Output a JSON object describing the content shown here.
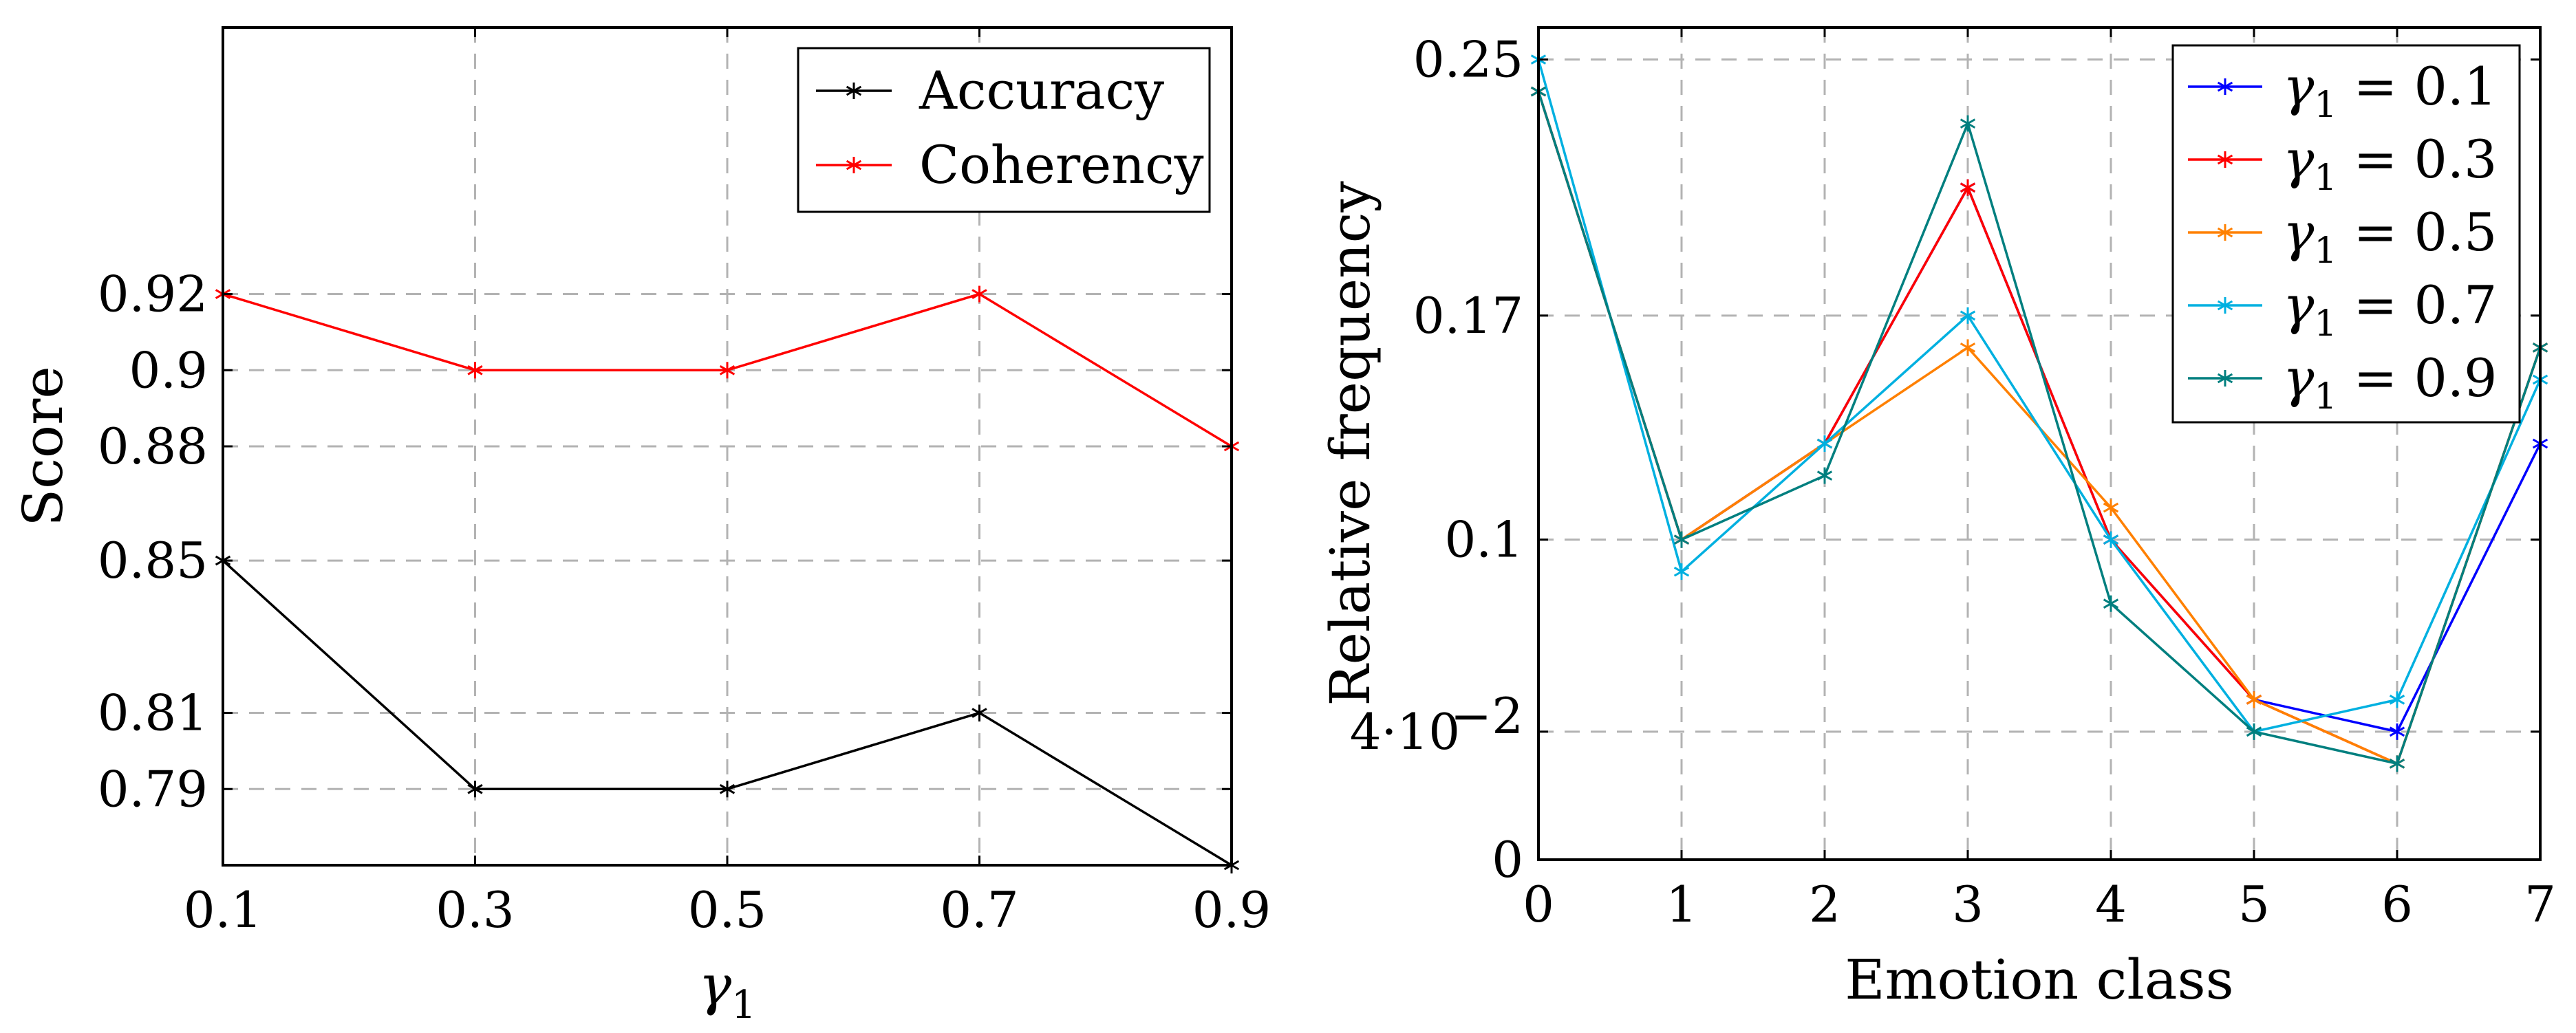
{
  "chart_data": [
    {
      "type": "line",
      "xlabel": "γ1",
      "ylabel": "Score",
      "x": [
        0.1,
        0.3,
        0.5,
        0.7,
        0.9
      ],
      "x_tick_labels": [
        "0.1",
        "0.3",
        "0.5",
        "0.7",
        "0.9"
      ],
      "xlim": [
        0.1,
        0.9
      ],
      "y_ticks": [
        0.79,
        0.81,
        0.85,
        0.88,
        0.9,
        0.92
      ],
      "y_tick_labels": [
        "0.79",
        "0.81",
        "0.85",
        "0.88",
        "0.9",
        "0.92"
      ],
      "ylim": [
        0.77,
        0.99
      ],
      "grid": true,
      "legend_position": "top-right",
      "series": [
        {
          "name": "Accuracy",
          "color": "#000000",
          "marker": "star",
          "values": [
            0.85,
            0.79,
            0.79,
            0.81,
            0.77
          ]
        },
        {
          "name": "Coherency",
          "color": "#ff0000",
          "marker": "star",
          "values": [
            0.92,
            0.9,
            0.9,
            0.92,
            0.88
          ]
        }
      ]
    },
    {
      "type": "line",
      "xlabel": "Emotion class",
      "ylabel": "Relative frequency",
      "x": [
        0,
        1,
        2,
        3,
        4,
        5,
        6,
        7
      ],
      "x_tick_labels": [
        "0",
        "1",
        "2",
        "3",
        "4",
        "5",
        "6",
        "7"
      ],
      "xlim": [
        0,
        7
      ],
      "y_ticks": [
        0,
        0.04,
        0.1,
        0.17,
        0.25
      ],
      "y_tick_labels": [
        "0",
        "4·10",
        "0.1",
        "0.17",
        "0.25"
      ],
      "y_tick_exponent": "−2",
      "ylim": [
        0,
        0.26
      ],
      "grid": true,
      "legend_position": "top-right",
      "legend_prefix": "γ1 = ",
      "series": [
        {
          "name": "0.1",
          "color": "#0000ff",
          "marker": "star",
          "values": [
            0.24,
            0.1,
            0.13,
            0.21,
            0.1,
            0.05,
            0.04,
            0.13
          ]
        },
        {
          "name": "0.3",
          "color": "#ff0000",
          "marker": "star",
          "values": [
            0.24,
            0.1,
            0.13,
            0.21,
            0.1,
            0.05,
            0.03,
            0.16
          ]
        },
        {
          "name": "0.5",
          "color": "#ff8000",
          "marker": "star",
          "values": [
            0.24,
            0.1,
            0.13,
            0.16,
            0.11,
            0.05,
            0.03,
            0.16
          ]
        },
        {
          "name": "0.7",
          "color": "#00b0e0",
          "marker": "star",
          "values": [
            0.25,
            0.09,
            0.13,
            0.17,
            0.1,
            0.04,
            0.05,
            0.15
          ]
        },
        {
          "name": "0.9",
          "color": "#007f7f",
          "marker": "star",
          "values": [
            0.24,
            0.1,
            0.12,
            0.23,
            0.08,
            0.04,
            0.03,
            0.16
          ]
        }
      ]
    }
  ]
}
